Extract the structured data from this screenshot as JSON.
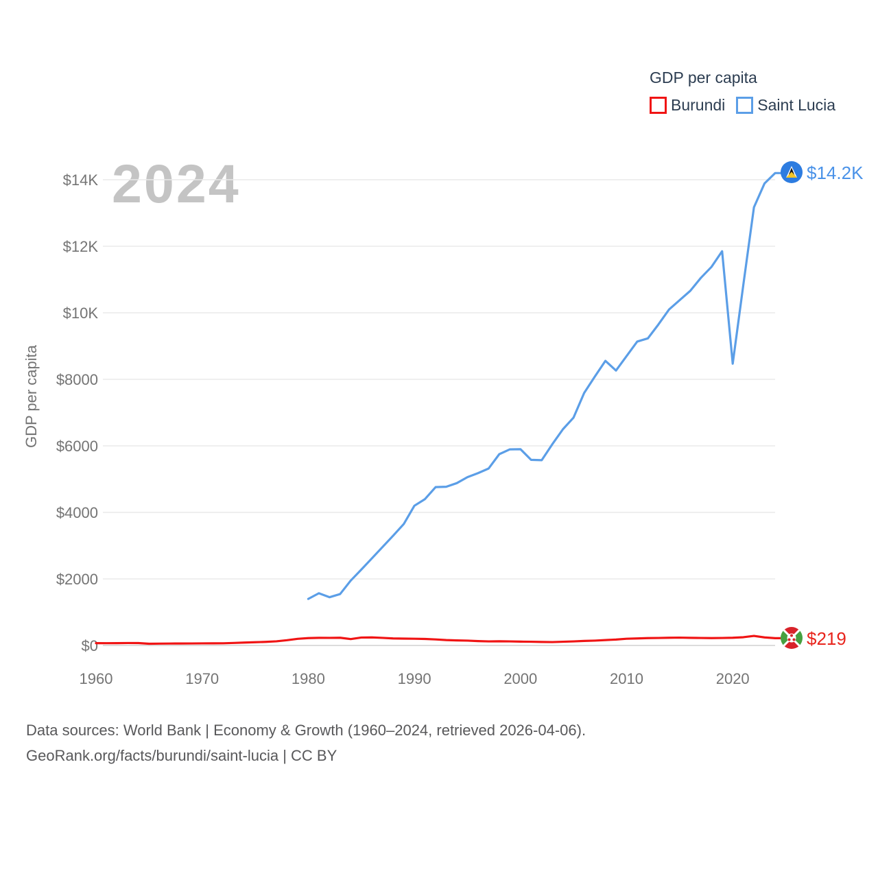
{
  "legend": {
    "title": "GDP per capita",
    "items": [
      {
        "label": "Burundi",
        "color": "#f01414"
      },
      {
        "label": "Saint Lucia",
        "color": "#5b9ee7"
      }
    ]
  },
  "watermark": "2024",
  "axes": {
    "y_title": "GDP per capita",
    "y_ticks": [
      {
        "label": "$0",
        "value": 0
      },
      {
        "label": "$2000",
        "value": 2000
      },
      {
        "label": "$4000",
        "value": 4000
      },
      {
        "label": "$6000",
        "value": 6000
      },
      {
        "label": "$8000",
        "value": 8000
      },
      {
        "label": "$10K",
        "value": 10000
      },
      {
        "label": "$12K",
        "value": 12000
      },
      {
        "label": "$14K",
        "value": 14000
      }
    ],
    "x_ticks": [
      {
        "label": "1960",
        "value": 1960
      },
      {
        "label": "1970",
        "value": 1970
      },
      {
        "label": "1980",
        "value": 1980
      },
      {
        "label": "1990",
        "value": 1990
      },
      {
        "label": "2000",
        "value": 2000
      },
      {
        "label": "2010",
        "value": 2010
      },
      {
        "label": "2020",
        "value": 2020
      }
    ]
  },
  "end_labels": [
    {
      "series": "Saint Lucia",
      "label": "$14.2K",
      "color": "#4a92e8",
      "flag": "saint-lucia-flag"
    },
    {
      "series": "Burundi",
      "label": "$219",
      "color": "#e8241c",
      "flag": "burundi-flag"
    }
  ],
  "footer": {
    "line1": "Data sources: World Bank | Economy & Growth (1960–2024, retrieved 2026-04-06).",
    "line2": "GeoRank.org/facts/burundi/saint-lucia | CC BY"
  },
  "chart_data": {
    "type": "line",
    "title": "GDP per capita",
    "ylabel": "GDP per capita",
    "xlim": [
      1958,
      2026
    ],
    "ylim": [
      0,
      14500
    ],
    "grid": "horizontal",
    "legend_position": "top-right",
    "series": [
      {
        "name": "Burundi",
        "color": "#f01414",
        "end_label": "$219",
        "x": [
          1960,
          1961,
          1962,
          1963,
          1964,
          1965,
          1966,
          1967,
          1968,
          1969,
          1970,
          1971,
          1972,
          1973,
          1974,
          1975,
          1976,
          1977,
          1978,
          1979,
          1980,
          1981,
          1982,
          1983,
          1984,
          1985,
          1986,
          1987,
          1988,
          1989,
          1990,
          1991,
          1992,
          1993,
          1994,
          1995,
          1996,
          1997,
          1998,
          1999,
          2000,
          2001,
          2002,
          2003,
          2004,
          2005,
          2006,
          2007,
          2008,
          2009,
          2010,
          2011,
          2012,
          2013,
          2014,
          2015,
          2016,
          2017,
          2018,
          2019,
          2020,
          2021,
          2022,
          2023,
          2024
        ],
        "y": [
          70,
          68,
          70,
          73,
          72,
          52,
          55,
          58,
          60,
          61,
          63,
          65,
          66,
          76,
          88,
          98,
          108,
          125,
          158,
          200,
          222,
          230,
          228,
          232,
          192,
          238,
          242,
          228,
          212,
          206,
          202,
          196,
          182,
          162,
          152,
          146,
          132,
          122,
          126,
          122,
          116,
          112,
          106,
          102,
          112,
          122,
          136,
          146,
          162,
          178,
          202,
          212,
          222,
          226,
          232,
          236,
          230,
          226,
          222,
          226,
          232,
          248,
          288,
          242,
          219
        ]
      },
      {
        "name": "Saint Lucia",
        "color": "#5b9ee7",
        "end_label": "$14.2K",
        "x": [
          1980,
          1981,
          1982,
          1983,
          1984,
          1985,
          1986,
          1987,
          1988,
          1989,
          1990,
          1991,
          1992,
          1993,
          1994,
          1995,
          1996,
          1997,
          1998,
          1999,
          2000,
          2001,
          2002,
          2003,
          2004,
          2005,
          2006,
          2007,
          2008,
          2009,
          2010,
          2011,
          2012,
          2013,
          2014,
          2015,
          2016,
          2017,
          2018,
          2019,
          2020,
          2021,
          2022,
          2023,
          2024
        ],
        "y": [
          1400,
          1570,
          1450,
          1545,
          1950,
          2280,
          2620,
          2960,
          3300,
          3650,
          4200,
          4400,
          4760,
          4770,
          4880,
          5060,
          5180,
          5320,
          5750,
          5895,
          5900,
          5580,
          5570,
          6050,
          6500,
          6850,
          7590,
          8080,
          8555,
          8265,
          8700,
          9135,
          9230,
          9650,
          10100,
          10380,
          10660,
          11050,
          11380,
          11850,
          8470,
          10840,
          13170,
          13890,
          14200
        ]
      }
    ]
  }
}
